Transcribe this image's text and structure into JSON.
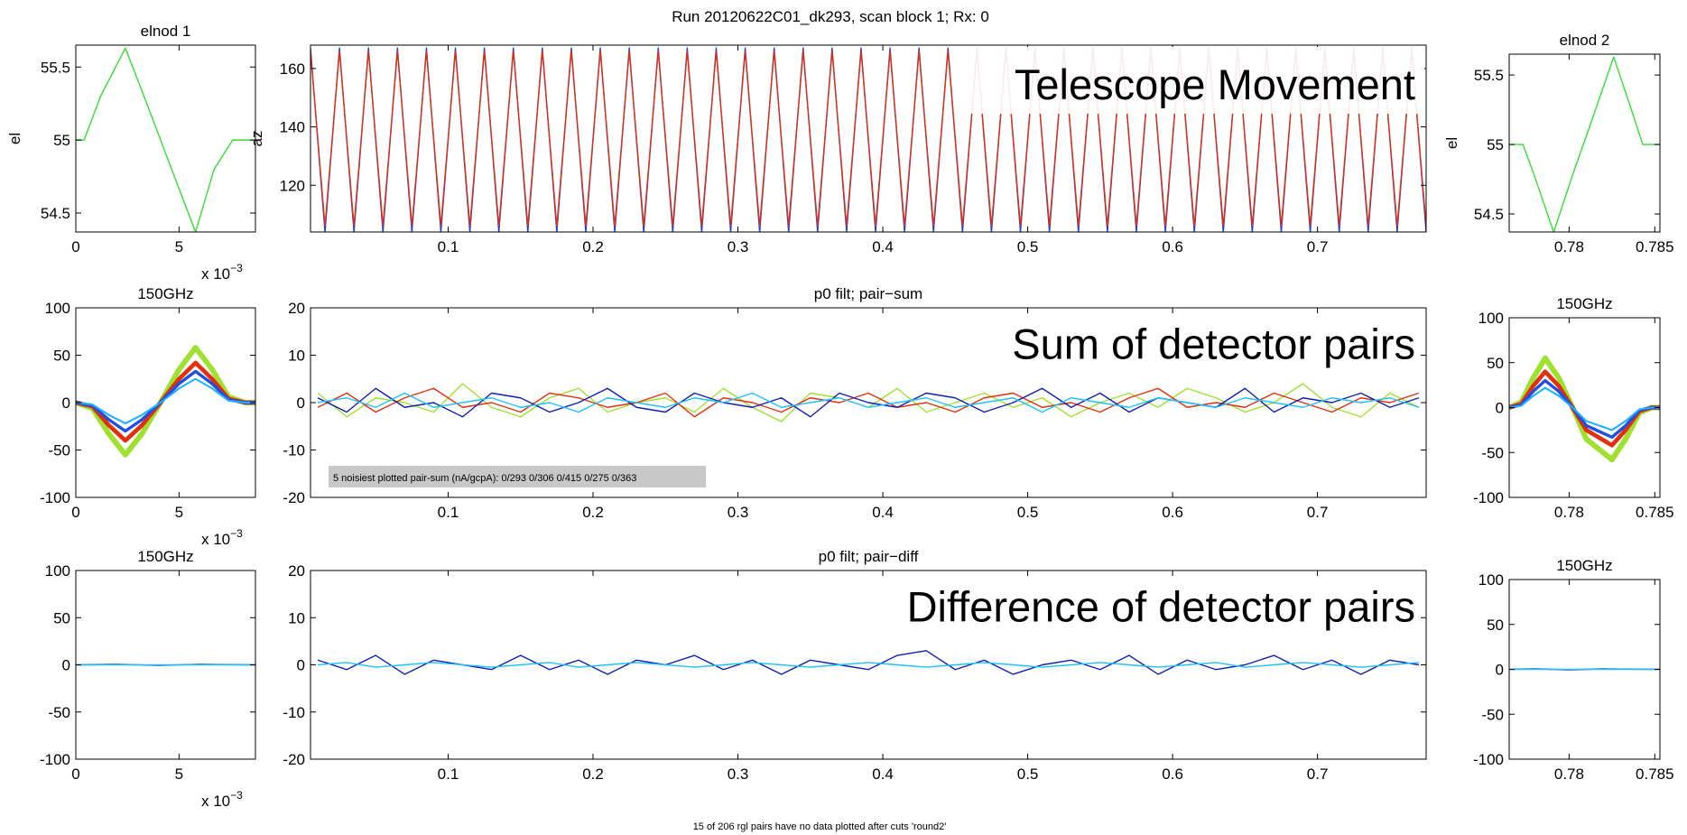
{
  "title": "Run 20120622C01_dk293, scan block 1; Rx: 0",
  "footer": "15 of 206 rgl pairs have no data plotted after cuts 'round2'",
  "chart_data": [
    {
      "type": "line",
      "title": "elnod 1",
      "ylabel": "el",
      "x_multiplier": "x 10",
      "x_multiplier_exponent": "−3",
      "xlim": [
        0,
        8.7
      ],
      "xticks": [
        0,
        5
      ],
      "ylim": [
        54.37,
        55.65
      ],
      "yticks": [
        54.5,
        55,
        55.5
      ],
      "x": [
        0,
        0.4,
        1.2,
        2.4,
        3.6,
        4.8,
        5.8,
        6.7,
        7.6,
        8.7
      ],
      "series": [
        {
          "color": "#33dd33",
          "values": [
            55,
            55,
            55.3,
            55.63,
            55.19,
            54.74,
            54.37,
            54.8,
            55,
            55
          ]
        }
      ]
    },
    {
      "type": "line",
      "ylabel": "az",
      "annotation": "Telescope Movement",
      "xlim": [
        0.005,
        0.775
      ],
      "xticks": [
        0.1,
        0.2,
        0.3,
        0.4,
        0.5,
        0.6,
        0.7
      ],
      "ylim": [
        104,
        168
      ],
      "yticks": [
        120,
        140,
        160
      ],
      "x": [
        0.005,
        0.015,
        0.025,
        0.035,
        0.045,
        0.055,
        0.065,
        0.075,
        0.085,
        0.095,
        0.105,
        0.115,
        0.125,
        0.135,
        0.145,
        0.155,
        0.165,
        0.175,
        0.185,
        0.195,
        0.205,
        0.215,
        0.225,
        0.235,
        0.245,
        0.255,
        0.265,
        0.275,
        0.285,
        0.295,
        0.305,
        0.315,
        0.325,
        0.335,
        0.345,
        0.355,
        0.365,
        0.375,
        0.385,
        0.395,
        0.405,
        0.415,
        0.425,
        0.435,
        0.445,
        0.455,
        0.465,
        0.475,
        0.485,
        0.495,
        0.505,
        0.515,
        0.525,
        0.535,
        0.545,
        0.555,
        0.565,
        0.575,
        0.585,
        0.595,
        0.605,
        0.615,
        0.625,
        0.635,
        0.645,
        0.655,
        0.665,
        0.675,
        0.685,
        0.695,
        0.705,
        0.715,
        0.725,
        0.735,
        0.745,
        0.755,
        0.765,
        0.775
      ],
      "series": [
        {
          "color": "#1040e0",
          "values": [
            167,
            104,
            167,
            104,
            167,
            104,
            167,
            104,
            167,
            104,
            167,
            104,
            167,
            104,
            167,
            104,
            167,
            104,
            167,
            104,
            167,
            104,
            167,
            104,
            167,
            104,
            167,
            104,
            167,
            104,
            167,
            104,
            167,
            104,
            167,
            104,
            167,
            104,
            167,
            104,
            167,
            104,
            167,
            104,
            167,
            104,
            167,
            104,
            167,
            104,
            167,
            104,
            167,
            104,
            167,
            104,
            167,
            104,
            167,
            104,
            167,
            104,
            167,
            104,
            167,
            104,
            167,
            104,
            167,
            104,
            167,
            104,
            167,
            104,
            167,
            104,
            167,
            104
          ]
        },
        {
          "color": "#e03010",
          "values": [
            166,
            106,
            166,
            106,
            166,
            106,
            166,
            106,
            166,
            106,
            166,
            106,
            166,
            106,
            166,
            106,
            166,
            106,
            166,
            106,
            166,
            106,
            166,
            106,
            166,
            106,
            166,
            106,
            166,
            106,
            166,
            106,
            166,
            106,
            166,
            106,
            166,
            106,
            166,
            106,
            166,
            106,
            166,
            106,
            166,
            106,
            166,
            106,
            166,
            106,
            166,
            106,
            166,
            106,
            166,
            106,
            166,
            106,
            166,
            106,
            166,
            106,
            166,
            106,
            166,
            106,
            166,
            106,
            166,
            106,
            166,
            106,
            166,
            106,
            166,
            106,
            166,
            106
          ]
        }
      ]
    },
    {
      "type": "line",
      "title": "elnod 2",
      "ylabel": "el",
      "xlim": [
        0.7765,
        0.7853
      ],
      "xticks": [
        0.78,
        0.785
      ],
      "ylim": [
        54.37,
        55.65
      ],
      "yticks": [
        54.5,
        55,
        55.5
      ],
      "x": [
        0.7765,
        0.7773,
        0.7779,
        0.7791,
        0.7802,
        0.7814,
        0.7826,
        0.7835,
        0.7843,
        0.7853
      ],
      "series": [
        {
          "color": "#33dd33",
          "values": [
            55,
            55,
            54.8,
            54.37,
            54.78,
            55.2,
            55.63,
            55.3,
            55,
            55
          ]
        }
      ]
    },
    {
      "type": "line",
      "title": "150GHz",
      "x_multiplier": "x 10",
      "x_multiplier_exponent": "−3",
      "xlim": [
        0,
        8.7
      ],
      "xticks": [
        0,
        5
      ],
      "ylim": [
        -100,
        100
      ],
      "yticks": [
        -100,
        -50,
        0,
        50,
        100
      ],
      "x": [
        0,
        0.8,
        1.6,
        2.4,
        3.2,
        4.1,
        5,
        5.8,
        6.6,
        7.4,
        8.2,
        8.7
      ],
      "series": [
        {
          "color": "#a0e030",
          "values": [
            0,
            -6,
            -33,
            -55,
            -33,
            0,
            35,
            58,
            35,
            6,
            0,
            0
          ]
        },
        {
          "color": "#e03010",
          "values": [
            0,
            -4,
            -24,
            -40,
            -24,
            0,
            25,
            42,
            25,
            4,
            0,
            0
          ]
        },
        {
          "color": "#2050e0",
          "values": [
            0,
            -3,
            -18,
            -30,
            -18,
            0,
            20,
            33,
            20,
            3,
            0,
            0
          ]
        },
        {
          "color": "#20b0ff",
          "values": [
            0,
            -2,
            -13,
            -22,
            -13,
            0,
            15,
            25,
            15,
            2,
            0,
            0
          ]
        }
      ]
    },
    {
      "type": "line",
      "title": "p0 filt; pair−sum",
      "annotation": "Sum of detector pairs",
      "note": "5 noisiest plotted pair-sum (nA/gcpA): 0/293 0/306 0/415 0/275 0/363",
      "xlim": [
        0.005,
        0.775
      ],
      "xticks": [
        0.1,
        0.2,
        0.3,
        0.4,
        0.5,
        0.6,
        0.7
      ],
      "ylim": [
        -20,
        20
      ],
      "yticks": [
        -20,
        -10,
        0,
        10,
        20
      ],
      "x": [
        0.01,
        0.03,
        0.05,
        0.07,
        0.09,
        0.11,
        0.13,
        0.15,
        0.17,
        0.19,
        0.21,
        0.23,
        0.25,
        0.27,
        0.29,
        0.31,
        0.33,
        0.35,
        0.37,
        0.39,
        0.41,
        0.43,
        0.45,
        0.47,
        0.49,
        0.51,
        0.53,
        0.55,
        0.57,
        0.59,
        0.61,
        0.63,
        0.65,
        0.67,
        0.69,
        0.71,
        0.73,
        0.75,
        0.77
      ],
      "series": [
        {
          "color": "#a0e030",
          "values": [
            2,
            -3,
            1,
            0,
            -2,
            4,
            -1,
            -3,
            1,
            3,
            -2,
            0,
            1,
            -2,
            3,
            -1,
            -4,
            2,
            1,
            -1,
            3,
            -2,
            0,
            2,
            -1,
            1,
            -3,
            0,
            2,
            -1,
            3,
            1,
            -2,
            0,
            4,
            -1,
            -3,
            2,
            -1
          ]
        },
        {
          "color": "#e03010",
          "values": [
            -1,
            2,
            -2,
            1,
            3,
            -1,
            0,
            -2,
            2,
            1,
            -1,
            0,
            2,
            -3,
            1,
            0,
            -2,
            1,
            0,
            2,
            -1,
            0,
            -2,
            1,
            2,
            -1,
            0,
            -2,
            1,
            3,
            -1,
            0,
            -1,
            2,
            0,
            -2,
            1,
            0,
            2
          ]
        },
        {
          "color": "#1020b0",
          "values": [
            1,
            -2,
            3,
            -1,
            0,
            -3,
            2,
            1,
            -2,
            0,
            3,
            -1,
            -2,
            2,
            0,
            -1,
            1,
            -3,
            2,
            0,
            -1,
            2,
            1,
            -2,
            0,
            3,
            -1,
            2,
            -2,
            1,
            0,
            -1,
            3,
            -2,
            1,
            0,
            2,
            -1,
            1
          ]
        },
        {
          "color": "#20c0ff",
          "values": [
            0,
            1,
            -1,
            2,
            -1,
            0,
            1,
            -1,
            0,
            -2,
            1,
            0,
            -1,
            1,
            0,
            2,
            -1,
            0,
            1,
            -1,
            0,
            1,
            -1,
            0,
            1,
            -2,
            1,
            0,
            -1,
            1,
            0,
            -1,
            1,
            0,
            -1,
            1,
            0,
            1,
            -1
          ]
        }
      ]
    },
    {
      "type": "line",
      "title": "150GHz",
      "xlim": [
        0.7765,
        0.7853
      ],
      "xticks": [
        0.78,
        0.785
      ],
      "ylim": [
        -100,
        100
      ],
      "yticks": [
        -100,
        -50,
        0,
        50,
        100
      ],
      "x": [
        0.7765,
        0.7772,
        0.7779,
        0.7786,
        0.7794,
        0.7802,
        0.781,
        0.7825,
        0.7833,
        0.7841,
        0.7848,
        0.7853
      ],
      "series": [
        {
          "color": "#a0e030",
          "values": [
            0,
            6,
            33,
            55,
            33,
            0,
            -35,
            -58,
            -35,
            -6,
            0,
            0
          ]
        },
        {
          "color": "#e03010",
          "values": [
            0,
            4,
            24,
            40,
            24,
            0,
            -25,
            -42,
            -25,
            -4,
            0,
            0
          ]
        },
        {
          "color": "#2050e0",
          "values": [
            0,
            3,
            18,
            30,
            18,
            0,
            -20,
            -33,
            -20,
            -3,
            0,
            0
          ]
        },
        {
          "color": "#20b0ff",
          "values": [
            0,
            2,
            13,
            22,
            13,
            0,
            -15,
            -25,
            -15,
            -2,
            0,
            0
          ]
        }
      ]
    },
    {
      "type": "line",
      "title": "150GHz",
      "x_multiplier": "x 10",
      "x_multiplier_exponent": "−3",
      "xlim": [
        0,
        8.7
      ],
      "xticks": [
        0,
        5
      ],
      "ylim": [
        -100,
        100
      ],
      "yticks": [
        -100,
        -50,
        0,
        50,
        100
      ],
      "x": [
        0,
        2,
        4,
        6,
        8.7
      ],
      "series": [
        {
          "color": "#1020b0",
          "values": [
            0,
            0.5,
            -0.5,
            0.5,
            0
          ]
        },
        {
          "color": "#20c0ff",
          "values": [
            0,
            0,
            0,
            0,
            0
          ]
        }
      ]
    },
    {
      "type": "line",
      "title": "p0 filt; pair−diff",
      "annotation": "Difference of detector pairs",
      "xlim": [
        0.005,
        0.775
      ],
      "xticks": [
        0.1,
        0.2,
        0.3,
        0.4,
        0.5,
        0.6,
        0.7
      ],
      "ylim": [
        -20,
        20
      ],
      "yticks": [
        -20,
        -10,
        0,
        10,
        20
      ],
      "x": [
        0.01,
        0.03,
        0.05,
        0.07,
        0.09,
        0.11,
        0.13,
        0.15,
        0.17,
        0.19,
        0.21,
        0.23,
        0.25,
        0.27,
        0.29,
        0.31,
        0.33,
        0.35,
        0.37,
        0.39,
        0.41,
        0.43,
        0.45,
        0.47,
        0.49,
        0.51,
        0.53,
        0.55,
        0.57,
        0.59,
        0.61,
        0.63,
        0.65,
        0.67,
        0.69,
        0.71,
        0.73,
        0.75,
        0.77
      ],
      "series": [
        {
          "color": "#1020b0",
          "values": [
            1,
            -1,
            2,
            -2,
            1,
            0,
            -1,
            2,
            -1,
            1,
            -2,
            1,
            0,
            2,
            -1,
            1,
            -2,
            1,
            0,
            -1,
            2,
            3,
            -1,
            1,
            -2,
            0,
            1,
            -1,
            2,
            -2,
            1,
            -1,
            0,
            2,
            -1,
            1,
            -2,
            1,
            0
          ]
        },
        {
          "color": "#20c0ff",
          "values": [
            0,
            0.5,
            -0.5,
            0,
            0.5,
            0,
            -0.5,
            0,
            0.5,
            -0.5,
            0,
            0.5,
            0,
            -0.5,
            0,
            0.5,
            0,
            -0.5,
            0,
            0.5,
            0,
            -0.5,
            0,
            0.5,
            0,
            -0.5,
            0,
            0.5,
            0,
            -0.5,
            0,
            0.5,
            -0.5,
            0,
            0.5,
            0,
            -0.5,
            0,
            0.5
          ]
        }
      ]
    },
    {
      "type": "line",
      "title": "150GHz",
      "xlim": [
        0.7765,
        0.7853
      ],
      "xticks": [
        0.78,
        0.785
      ],
      "ylim": [
        -100,
        100
      ],
      "yticks": [
        -100,
        -50,
        0,
        50,
        100
      ],
      "x": [
        0.7765,
        0.778,
        0.78,
        0.782,
        0.7853
      ],
      "series": [
        {
          "color": "#1020b0",
          "values": [
            0,
            0.5,
            -0.5,
            0.5,
            0
          ]
        },
        {
          "color": "#20c0ff",
          "values": [
            0,
            0,
            0,
            0,
            0
          ]
        }
      ]
    }
  ]
}
